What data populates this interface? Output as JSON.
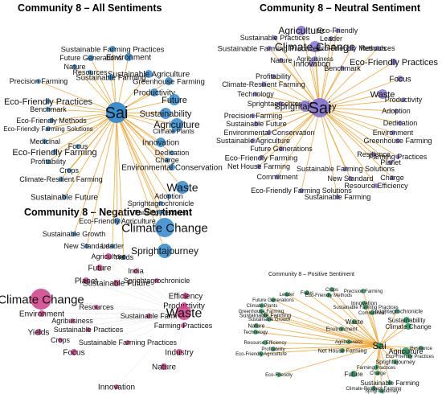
{
  "panels": [
    {
      "title": "Community 8 – All Sentiments",
      "hub": "Sai",
      "edge_color": "#f0a32c",
      "node_color": "#3a8fd1",
      "labels": [
        "Sustainable Farming Practices",
        "Future Generations",
        "Environment",
        "Nature",
        "Resources",
        "Sustainable Agriculture",
        "Sustainable Farming",
        "Precision Farming",
        "Greenhouse Farming",
        "Productivity",
        "Future",
        "Eco-Friendly Practices",
        "Benchmark",
        "Sustainability",
        "Eco-Friendly Methods",
        "Agriculture",
        "Climate Plants",
        "Eco-Friendly Farming Solutions",
        "Innovation",
        "Medicinal",
        "Focus",
        "Eco-Friendly Farming",
        "Dedication",
        "Charge",
        "Profitability",
        "Environmental Conservation",
        "Crops",
        "Waste",
        "Climate-Resilient Farming",
        "Adoption",
        "Sprightagrochronicle",
        "Sustainable Future",
        "Farming Practices",
        "Eco-Friendly Agriculture",
        "Climate Change",
        "Sustainable Growth",
        "New Standard",
        "Leader",
        "Sprightajourney",
        "Yields"
      ]
    },
    {
      "title": "Community 8 – Neutral Sentiment",
      "hub": "Sai",
      "edge_color": "#f0a32c",
      "node_color": "#8b7bd1",
      "labels": [
        "Agriculture",
        "Eco-Friendly",
        "Sustainable Practices",
        "Leader",
        "Climate Change",
        "Eco-Friendly Methods",
        "Sustainable Farming Practices",
        "Resources",
        "Nature",
        "Innovation",
        "Agribusiness",
        "Benchmark",
        "Eco-Friendly Practices",
        "Profitability",
        "Focus",
        "Climate-Resilient Farming",
        "Technology",
        "Waste",
        "Sprightagrochronicle",
        "Sprightajourney",
        "Productivity",
        "Precision Farming",
        "Adoption",
        "Sustainable Future",
        "Dedication",
        "Environmental Conservation",
        "Environment",
        "Sustainable Agriculture",
        "Greenhouse Farming",
        "Future Generations",
        "Eco-Friendly Farming",
        "Resilience",
        "Farming Practices",
        "Net House Farming",
        "Sustainable Farming Solutions",
        "Planet",
        "Commitment",
        "New Standard",
        "Charge",
        "Resource Efficiency",
        "Eco-Friendly Farming Solutions",
        "Sustainable Farming"
      ]
    },
    {
      "title": "Community 8 – Negative Sentiment",
      "hub": "Waste",
      "edge_color": "#bbbbbb",
      "node_color": "#d4478f",
      "labels": [
        "Agriculture",
        "Future",
        "India",
        "Planet",
        "Sprightagrochronicle",
        "Sustainable Future",
        "Efficiency",
        "Climate Change",
        "Productivity",
        "Resources",
        "Waste",
        "Sustainable Farm",
        "Environment",
        "Agribusiness",
        "Farming Practices",
        "Yields",
        "Sustainable Practices",
        "Crops",
        "Sustainable Farming Practices",
        "Focus",
        "Industry",
        "Nature",
        "Innovation"
      ]
    },
    {
      "title": "Community 8 – Positive Sentiment",
      "hub": "Sai",
      "edge_color": "#f0a32c",
      "node_color": "#2f9e6a",
      "labels": [
        "Crops",
        "Focus",
        "Precision Farming",
        "Leader",
        "Eco-Friendly Methods",
        "Future Generations",
        "Climate Plants",
        "Greenhouse Farming",
        "Sustainable Farming",
        "Sustainable Growth",
        "Nature",
        "Technology",
        "Resource Efficiency",
        "Profitability",
        "Eco-Friendly Agriculture",
        "Eco-Friendly",
        "Innovation",
        "Sustainable Farming Practices",
        "Sprightagrochronicle",
        "Commitment",
        "Sustainability",
        "Waste",
        "Climate Change",
        "Environment",
        "Agribusiness",
        "Net House Farming",
        "Agriculture",
        "Resilience",
        "Eco-Friendly Practices",
        "Farming Practices",
        "Sprightajourney",
        "Future",
        "Charge",
        "Sustainable Farming",
        "Climate-Resilient Farming",
        "Sprightajourney"
      ]
    }
  ]
}
